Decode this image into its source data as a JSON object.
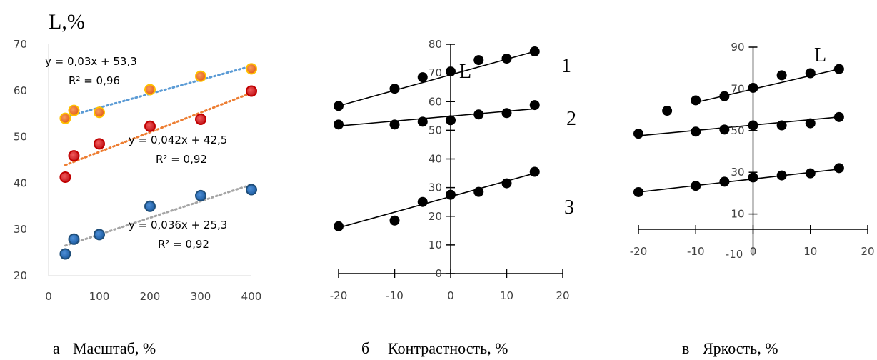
{
  "chart_data": [
    {
      "type": "scatter",
      "title": "",
      "ylabel": "L,%",
      "xlabel": "Масштаб, %",
      "panel_label": "а",
      "x_ticks": [
        "0",
        "100",
        "200",
        "300",
        "400"
      ],
      "y_ticks": [
        "20",
        "30",
        "40",
        "50",
        "60",
        "70"
      ],
      "xlim": [
        0,
        400
      ],
      "ylim": [
        20,
        70
      ],
      "grid": false,
      "series": [
        {
          "color": "#ed7d31",
          "edge_color": "#ffc000",
          "trend_color": "#5b9bd5",
          "points": [
            [
              33,
              54
            ],
            [
              50,
              55.7
            ],
            [
              100,
              55.3
            ],
            [
              200,
              60.2
            ],
            [
              300,
              63.1
            ],
            [
              400,
              64.7
            ]
          ],
          "trendline": [
            [
              33,
              54.3
            ],
            [
              400,
              65.3
            ]
          ],
          "equation": "y = 0,03x + 53,3",
          "r2": "R² = 0,96"
        },
        {
          "color": "#e31a1c",
          "edge_color": "#c00000",
          "trend_color": "#ed7d31",
          "points": [
            [
              33,
              41.3
            ],
            [
              50,
              45.9
            ],
            [
              100,
              48.5
            ],
            [
              200,
              52.3
            ],
            [
              300,
              53.8
            ],
            [
              400,
              59.9
            ]
          ],
          "trendline": [
            [
              33,
              43.9
            ],
            [
              400,
              59.5
            ]
          ],
          "equation": "y = 0,042x + 42,5",
          "r2": "R² = 0,92"
        },
        {
          "color": "#2e75b6",
          "edge_color": "#1f4e79",
          "trend_color": "#a5a5a5",
          "points": [
            [
              33,
              24.7
            ],
            [
              50,
              27.9
            ],
            [
              100,
              28.9
            ],
            [
              200,
              35
            ],
            [
              300,
              37.3
            ],
            [
              400,
              38.6
            ]
          ],
          "trendline": [
            [
              33,
              26.5
            ],
            [
              400,
              39.7
            ]
          ],
          "equation": "y = 0,036x + 25,3",
          "r2": "R² = 0,92"
        }
      ]
    },
    {
      "type": "scatter",
      "title": "",
      "axis_letter": "L",
      "xlabel": "Контрастность, %",
      "panel_label": "б",
      "x_ticks": [
        "-20",
        "-10",
        "0",
        "10",
        "20"
      ],
      "y_ticks": [
        "0",
        "10",
        "20",
        "30",
        "40",
        "50",
        "60",
        "70",
        "80"
      ],
      "xlim": [
        -20,
        20
      ],
      "ylim": [
        0,
        80
      ],
      "grid": false,
      "series": [
        {
          "label": "1",
          "points": [
            [
              -20,
              58.5
            ],
            [
              -10,
              64.5
            ],
            [
              -5,
              68.5
            ],
            [
              0,
              70.5
            ],
            [
              5,
              74.5
            ],
            [
              10,
              75
            ],
            [
              15,
              77.5
            ]
          ],
          "trendline": [
            [
              -20,
              58.5
            ],
            [
              15,
              77.5
            ]
          ]
        },
        {
          "label": "2",
          "points": [
            [
              -20,
              52
            ],
            [
              -10,
              52
            ],
            [
              -5,
              53
            ],
            [
              0,
              53.5
            ],
            [
              5,
              55.5
            ],
            [
              10,
              56
            ],
            [
              15,
              58.8
            ]
          ],
          "trendline": [
            [
              -20,
              51.5
            ],
            [
              15,
              57.5
            ]
          ]
        },
        {
          "label": "3",
          "points": [
            [
              -20,
              16.5
            ],
            [
              -10,
              18.5
            ],
            [
              -5,
              25
            ],
            [
              0,
              27.5
            ],
            [
              5,
              28.5
            ],
            [
              10,
              31.5
            ],
            [
              15,
              35.5
            ]
          ],
          "trendline": [
            [
              -20,
              16
            ],
            [
              15,
              35
            ]
          ]
        }
      ]
    },
    {
      "type": "scatter",
      "title": "",
      "axis_letter": "L",
      "xlabel": "Яркость, %",
      "panel_label": "в",
      "x_ticks": [
        "-20",
        "-10",
        "0",
        "10",
        "20"
      ],
      "y_ticks": [
        "10",
        "30",
        "50",
        "70",
        "90"
      ],
      "extra_tick": "-10",
      "xlim": [
        -20,
        20
      ],
      "ylim": [
        -10,
        90
      ],
      "grid": false,
      "series": [
        {
          "points": [
            [
              -15,
              59.5
            ],
            [
              -10,
              64.5
            ],
            [
              -5,
              66.5
            ],
            [
              0,
              70.5
            ],
            [
              5,
              76.5
            ],
            [
              10,
              77.5
            ],
            [
              15,
              79.5
            ]
          ],
          "trendline": [
            [
              -10,
              63.5
            ],
            [
              15,
              79.5
            ]
          ]
        },
        {
          "points": [
            [
              -20,
              48.5
            ],
            [
              -10,
              49.5
            ],
            [
              -5,
              50.5
            ],
            [
              0,
              52.5
            ],
            [
              5,
              52.5
            ],
            [
              10,
              53.5
            ],
            [
              15,
              56.5
            ]
          ],
          "trendline": [
            [
              -20,
              47.5
            ],
            [
              15,
              56.5
            ]
          ]
        },
        {
          "points": [
            [
              -20,
              20.5
            ],
            [
              -10,
              23.5
            ],
            [
              -5,
              25.5
            ],
            [
              0,
              27.5
            ],
            [
              5,
              28.5
            ],
            [
              10,
              29.5
            ],
            [
              15,
              32
            ]
          ],
          "trendline": [
            [
              -20,
              20.5
            ],
            [
              15,
              31.5
            ]
          ]
        }
      ]
    }
  ]
}
